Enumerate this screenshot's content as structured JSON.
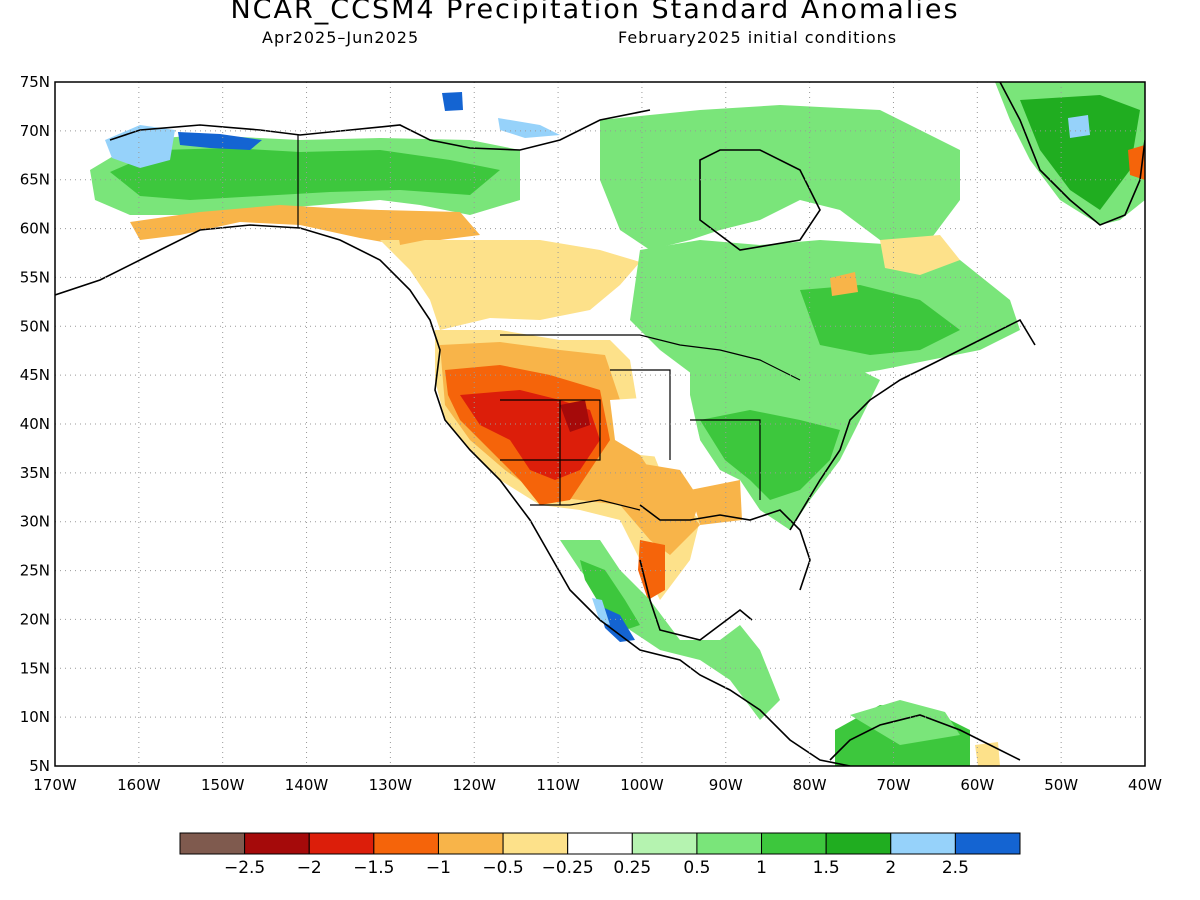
{
  "header": {
    "title": "NCAR_CCSM4 Precipitation Standard Anomalies",
    "period": "Apr2025–Jun2025",
    "init": "February2025 initial conditions"
  },
  "axes": {
    "lat_labels": [
      "75N",
      "70N",
      "65N",
      "60N",
      "55N",
      "50N",
      "45N",
      "40N",
      "35N",
      "30N",
      "25N",
      "20N",
      "15N",
      "10N",
      "5N"
    ],
    "lat_values": [
      75,
      70,
      65,
      60,
      55,
      50,
      45,
      40,
      35,
      30,
      25,
      20,
      15,
      10,
      5
    ],
    "lon_labels": [
      "170W",
      "160W",
      "150W",
      "140W",
      "130W",
      "120W",
      "110W",
      "100W",
      "90W",
      "80W",
      "70W",
      "60W",
      "50W",
      "40W"
    ],
    "lon_values": [
      -170,
      -160,
      -150,
      -140,
      -130,
      -120,
      -110,
      -100,
      -90,
      -80,
      -70,
      -60,
      -50,
      -40
    ],
    "lon_range": [
      -170,
      -40
    ],
    "lat_range": [
      5,
      75
    ],
    "grid": "dotted"
  },
  "colorbar": {
    "colors": [
      "#7f5a4e",
      "#a50a0a",
      "#dc1e0a",
      "#f5640a",
      "#f8b449",
      "#fde18a",
      "#ffffff",
      "#b5f3b0",
      "#7ae57a",
      "#3dc73d",
      "#20ad20",
      "#96d2fa",
      "#1464d2"
    ],
    "labels": [
      "-2.5",
      "-2",
      "-1.5",
      "-1",
      "-0.5",
      "-0.25",
      "0.25",
      "0.5",
      "1",
      "1.5",
      "2",
      "2.5"
    ]
  },
  "map_regions": [
    {
      "name": "alaska-wet",
      "category": "1 to 1.5",
      "color": "#3dc73d",
      "lon": -152,
      "lat": 66
    },
    {
      "name": "alaska-north-slope",
      "category": "2 to 2.5",
      "color": "#96d2fa",
      "lon": -157,
      "lat": 69
    },
    {
      "name": "southwest-us-dry",
      "category": "-1.5 to -2",
      "color": "#dc1e0a",
      "lon": -112,
      "lat": 39
    },
    {
      "name": "colorado-dry",
      "category": "-2 to -2.5",
      "color": "#a50a0a",
      "lon": -108,
      "lat": 40
    },
    {
      "name": "southern-plains-dry",
      "category": "-0.5 to -1",
      "color": "#f8b449",
      "lon": -97,
      "lat": 31
    },
    {
      "name": "eastern-us-wet",
      "category": "1 to 1.5",
      "color": "#3dc73d",
      "lon": -82,
      "lat": 36
    },
    {
      "name": "southern-mexico-wet",
      "category": "> 2.5",
      "color": "#1464d2",
      "lon": -103,
      "lat": 19
    },
    {
      "name": "greenland-wet",
      "category": "1.5 to 2",
      "color": "#20ad20",
      "lon": -44,
      "lat": 68
    },
    {
      "name": "venezuela-wet",
      "category": "1 to 1.5",
      "color": "#3dc73d",
      "lon": -70,
      "lat": 8
    }
  ]
}
